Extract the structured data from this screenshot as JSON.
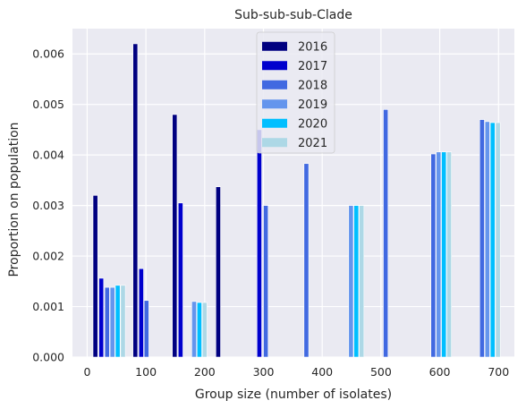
{
  "chart_data": {
    "type": "bar",
    "title": "Sub-sub-sub-Clade",
    "xlabel": "Group size (number of isolates)",
    "ylabel": "Proportion on population",
    "xlim": [
      -25,
      727
    ],
    "ylim": [
      0,
      0.0065
    ],
    "x_ticks": [
      0,
      100,
      200,
      300,
      400,
      500,
      600,
      700
    ],
    "y_ticks": [
      0.0,
      0.001,
      0.002,
      0.003,
      0.004,
      0.005,
      0.006
    ],
    "y_tick_labels": [
      "0.000",
      "0.001",
      "0.002",
      "0.003",
      "0.004",
      "0.005",
      "0.006"
    ],
    "grid": true,
    "legend_position": "top-center",
    "bar_width": 8,
    "series": [
      {
        "name": "2016",
        "color": "#000080",
        "points": [
          {
            "x": 14,
            "y": 0.0032
          },
          {
            "x": 82,
            "y": 0.0062
          },
          {
            "x": 149,
            "y": 0.0048
          },
          {
            "x": 223,
            "y": 0.00337
          }
        ]
      },
      {
        "name": "2017",
        "color": "#0000CD",
        "points": [
          {
            "x": 24,
            "y": 0.00156
          },
          {
            "x": 92,
            "y": 0.00175
          },
          {
            "x": 159,
            "y": 0.00305
          },
          {
            "x": 293,
            "y": 0.0045
          }
        ]
      },
      {
        "name": "2018",
        "color": "#4169E1",
        "points": [
          {
            "x": 34,
            "y": 0.00138
          },
          {
            "x": 101,
            "y": 0.00112
          },
          {
            "x": 304,
            "y": 0.003
          },
          {
            "x": 373,
            "y": 0.00383
          },
          {
            "x": 508,
            "y": 0.0049
          },
          {
            "x": 589,
            "y": 0.00402
          },
          {
            "x": 672,
            "y": 0.0047
          }
        ]
      },
      {
        "name": "2019",
        "color": "#6495ED",
        "points": [
          {
            "x": 43,
            "y": 0.00138
          },
          {
            "x": 182,
            "y": 0.0011
          },
          {
            "x": 449,
            "y": 0.003
          },
          {
            "x": 598,
            "y": 0.00406
          },
          {
            "x": 681,
            "y": 0.00466
          }
        ]
      },
      {
        "name": "2020",
        "color": "#00BFFF",
        "points": [
          {
            "x": 52,
            "y": 0.00142
          },
          {
            "x": 191,
            "y": 0.00108
          },
          {
            "x": 458,
            "y": 0.003
          },
          {
            "x": 607,
            "y": 0.00406
          },
          {
            "x": 690,
            "y": 0.00464
          }
        ]
      },
      {
        "name": "2021",
        "color": "#ADD8E6",
        "points": [
          {
            "x": 61,
            "y": 0.00142
          },
          {
            "x": 200,
            "y": 0.00108
          },
          {
            "x": 467,
            "y": 0.003
          },
          {
            "x": 616,
            "y": 0.00406
          },
          {
            "x": 699,
            "y": 0.00464
          }
        ]
      }
    ]
  },
  "colors": {
    "plot_background": "#EAEAF2",
    "grid": "#FFFFFF",
    "text": "#262626"
  }
}
